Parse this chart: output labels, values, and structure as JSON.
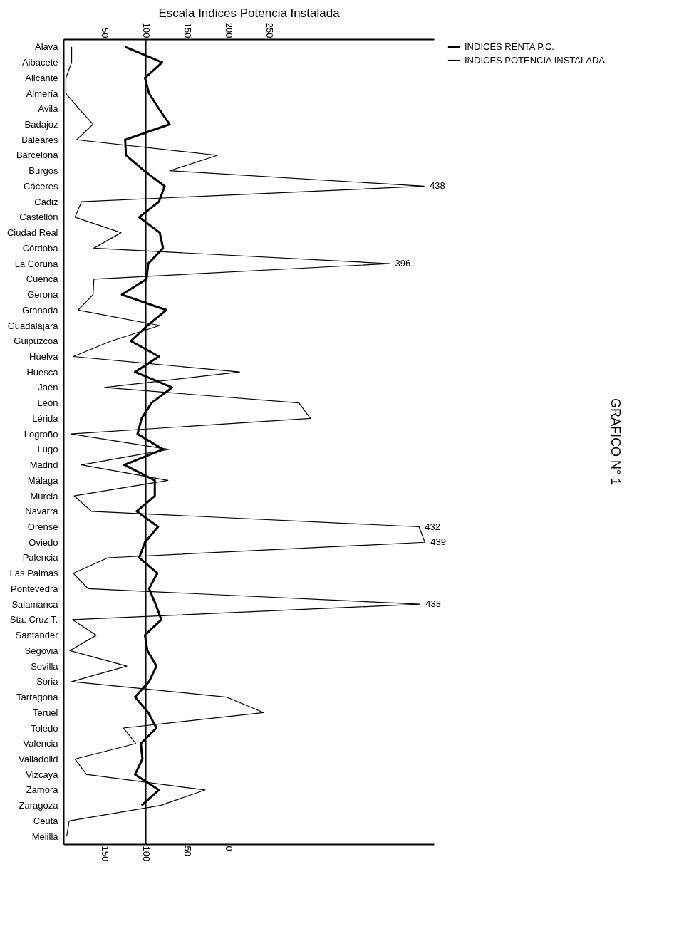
{
  "chart_data": {
    "type": "line",
    "title": "GRAFICO N° 1",
    "x2label": "Escala Indices Potencia Instalada",
    "orientation": "horizontal",
    "categories": [
      "Alava",
      "Aibacete",
      "Alicante",
      "Almería",
      "Avila",
      "Badajoz",
      "Baleares",
      "Barcelona",
      "Burgos",
      "Cáceres",
      "Cádiz",
      "Castellón",
      "Ciudad Real",
      "Córdoba",
      "La Coruña",
      "Cuenca",
      "Gerona",
      "Granada",
      "Guadalajara",
      "Guipúzcoa",
      "Huelva",
      "Huesca",
      "Jaén",
      "León",
      "Lérida",
      "Logroño",
      "Lugo",
      "Madrid",
      "Málaga",
      "Murcia",
      "Navarra",
      "Orense",
      "Oviedo",
      "Palencia",
      "Las Palmas",
      "Pontevedra",
      "Salamanca",
      "Sta. Cruz T.",
      "Santander",
      "Segovia",
      "Sevilla",
      "Soria",
      "Tarragona",
      "Teruel",
      "Toledo",
      "Valencia",
      "Valladolid",
      "Vizcaya",
      "Zamora",
      "Zaragoza",
      "Ceuta",
      "Melilla"
    ],
    "series": [
      {
        "name": "INDICES RENTA P.C.",
        "color": "#000000",
        "values": [
          125,
          80,
          101,
          96,
          84,
          71,
          125,
          124,
          102,
          77,
          84,
          108,
          83,
          79,
          97,
          99,
          129,
          75,
          98,
          118,
          84,
          113,
          68,
          93,
          105,
          110,
          79,
          126,
          89,
          89,
          111,
          85,
          101,
          108,
          86,
          96,
          88,
          81,
          101,
          98,
          87,
          96,
          113,
          97,
          87,
          106,
          104,
          113,
          84,
          105,
          null,
          null
        ]
      },
      {
        "name": "INDICES POTENCIA INSTALADA",
        "color": "#000000",
        "axis": "x2",
        "values": [
          10,
          10,
          3,
          3,
          19,
          36,
          16,
          187,
          129,
          438,
          22,
          14,
          70,
          37,
          396,
          37,
          36,
          18,
          117,
          58,
          12,
          214,
          50,
          286,
          300,
          9,
          128,
          22,
          127,
          13,
          34,
          432,
          439,
          54,
          12,
          30,
          433,
          11,
          40,
          8,
          77,
          10,
          198,
          243,
          73,
          88,
          14,
          28,
          172,
          118,
          7,
          4
        ],
        "value_labels": [
          null,
          null,
          null,
          null,
          null,
          null,
          null,
          null,
          null,
          "438",
          null,
          null,
          null,
          null,
          "396",
          null,
          null,
          null,
          null,
          null,
          null,
          null,
          null,
          null,
          null,
          null,
          null,
          null,
          null,
          null,
          null,
          "432",
          "439",
          null,
          null,
          null,
          "433",
          null,
          null,
          null,
          null,
          null,
          null,
          null,
          null,
          null,
          null,
          null,
          null,
          null,
          null,
          null
        ]
      }
    ],
    "xlim": [
      200,
      -250
    ],
    "xticks": [
      150,
      100,
      50,
      0
    ],
    "x2lim": [
      0,
      450
    ],
    "x2ticks": [
      50,
      100,
      150,
      200,
      250
    ],
    "ref_lines": [
      {
        "axis": "x",
        "value": 100
      }
    ],
    "grid": false,
    "legend": "right",
    "marker": "none",
    "line_style": "solid"
  }
}
